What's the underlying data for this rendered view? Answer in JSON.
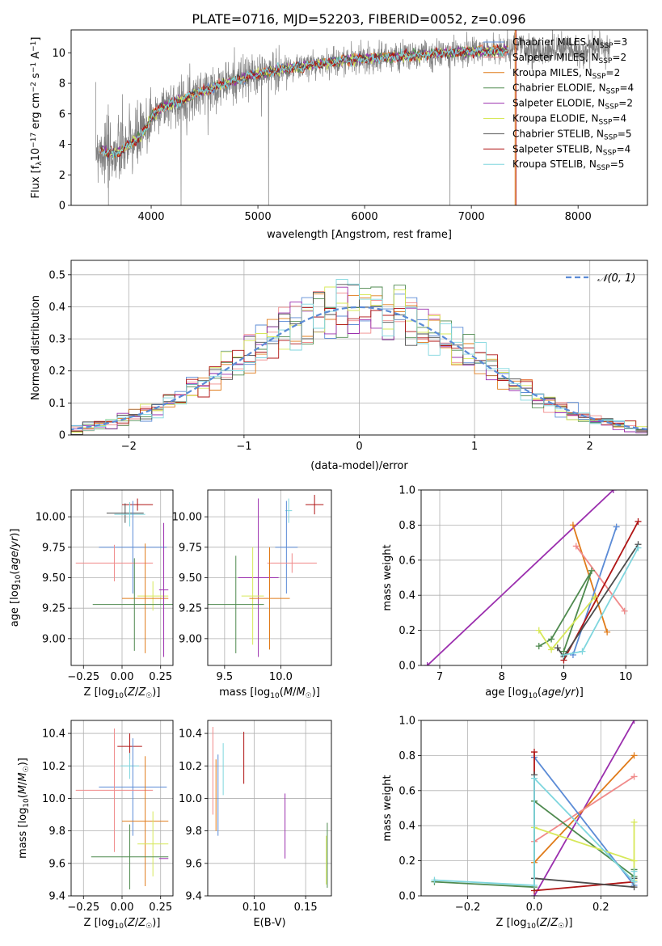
{
  "figure": {
    "title": "PLATE=0716, MJD=52203, FIBERID=0052, z=0.096"
  },
  "colors": {
    "chabrier_miles": "#5b8bd6",
    "salpeter_miles": "#f08a8a",
    "kroupa_miles": "#e07b1a",
    "chabrier_elodie": "#4f8a4f",
    "salpeter_elodie": "#9b2fae",
    "kroupa_elodie": "#d7e85a",
    "chabrier_stelib": "#4d4d4d",
    "salpeter_stelib": "#b01515",
    "kroupa_stelib": "#7fd6de",
    "spectrum": "#808080",
    "normal": "#5b8bd6",
    "grid": "#b0b0b0"
  },
  "chart_data": [
    {
      "id": "spectrum",
      "type": "line",
      "xlabel": "wavelength [Angstrom, rest frame]",
      "ylabel": "Flux [f_λ10^-17 erg cm^-2 s^-1 A^-1]",
      "xlim": [
        3250,
        8650
      ],
      "ylim": [
        0,
        11.5
      ],
      "xticks": [
        4000,
        5000,
        6000,
        7000,
        8000
      ],
      "yticks": [
        0,
        2,
        4,
        6,
        8,
        10
      ],
      "grid": false,
      "legend_position": "right",
      "legend": [
        {
          "key": "chabrier_miles",
          "label": "Chabrier MILES, N",
          "sub": "SSP",
          "tail": "=3"
        },
        {
          "key": "salpeter_miles",
          "label": "Salpeter MILES, N",
          "sub": "SSP",
          "tail": "=2"
        },
        {
          "key": "kroupa_miles",
          "label": "Kroupa MILES, N",
          "sub": "SSP",
          "tail": "=2"
        },
        {
          "key": "chabrier_elodie",
          "label": "Chabrier ELODIE, N",
          "sub": "SSP",
          "tail": "=4"
        },
        {
          "key": "salpeter_elodie",
          "label": "Salpeter ELODIE, N",
          "sub": "SSP",
          "tail": "=2"
        },
        {
          "key": "kroupa_elodie",
          "label": "Kroupa ELODIE, N",
          "sub": "SSP",
          "tail": "=4"
        },
        {
          "key": "chabrier_stelib",
          "label": "Chabrier STELIB, N",
          "sub": "SSP",
          "tail": "=5"
        },
        {
          "key": "salpeter_stelib",
          "label": "Salpeter STELIB, N",
          "sub": "SSP",
          "tail": "=4"
        },
        {
          "key": "kroupa_stelib",
          "label": "Kroupa STELIB, N",
          "sub": "SSP",
          "tail": "=5"
        }
      ],
      "continuum": {
        "x": [
          3480,
          3600,
          3700,
          3800,
          3900,
          3950,
          4000,
          4100,
          4200,
          4300,
          4400,
          4500,
          4600,
          4800,
          5000,
          5200,
          5400,
          5600,
          5800,
          6000,
          6200,
          6400,
          6600,
          6800,
          7000,
          7200,
          7400
        ],
        "y": [
          3.8,
          3.4,
          3.5,
          4.0,
          4.5,
          5.0,
          5.8,
          6.4,
          6.7,
          6.9,
          7.3,
          7.5,
          7.8,
          8.2,
          8.6,
          8.9,
          9.1,
          9.3,
          9.5,
          9.6,
          9.7,
          9.8,
          9.9,
          10.0,
          10.1,
          10.1,
          10.2
        ]
      },
      "spectrum_range": [
        3480,
        8300
      ],
      "model_range": [
        3520,
        7350
      ]
    },
    {
      "id": "residuals",
      "type": "histogram",
      "xlabel": "(data-model)/error",
      "ylabel": "Normed distribution",
      "xlim": [
        -2.5,
        2.5
      ],
      "ylim": [
        0,
        0.545
      ],
      "xticks": [
        -2,
        -1,
        0,
        1,
        2
      ],
      "yticks": [
        0,
        0.1,
        0.2,
        0.3,
        0.4,
        0.5
      ],
      "grid": true,
      "legend_position": "top-right",
      "legend": [
        {
          "key": "normal",
          "label": "𝒩(0, 1)"
        }
      ],
      "bin_width": 0.1
    },
    {
      "id": "age_vs_Z",
      "type": "errorbar",
      "xlabel": "Z [log10(Z/Z☉)]",
      "ylabel": "age  [log10(age/yr)]",
      "xlim": [
        -0.33,
        0.33
      ],
      "ylim": [
        8.78,
        10.22
      ],
      "xticks": [
        -0.25,
        0,
        0.25
      ],
      "xticklabels": [
        "−0.25",
        "0.00",
        "0.25"
      ],
      "yticks": [
        9.0,
        9.25,
        9.5,
        9.75,
        10.0
      ],
      "yticklabels": [
        "9.00",
        "9.25",
        "9.50",
        "9.75",
        "10.00"
      ],
      "grid": true,
      "points": [
        {
          "key": "salpeter_stelib",
          "x": 0.1,
          "xerr": 0.1,
          "y": 10.1,
          "yerr": 0.05
        },
        {
          "key": "chabrier_stelib",
          "x": 0.02,
          "xerr": 0.12,
          "y": 10.03,
          "yerr": 0.08
        },
        {
          "key": "kroupa_stelib",
          "x": 0.05,
          "xerr": 0.1,
          "y": 10.02,
          "yerr": 0.1
        },
        {
          "key": "chabrier_miles",
          "x": 0.07,
          "xerr": 0.22,
          "y": 9.75,
          "yerr": 0.38
        },
        {
          "key": "salpeter_miles",
          "x": -0.05,
          "xerr": 0.25,
          "y": 9.62,
          "yerr": 0.15
        },
        {
          "key": "kroupa_elodie",
          "x": 0.2,
          "xerr": 0.1,
          "y": 9.35,
          "yerr": 0.12
        },
        {
          "key": "kroupa_miles",
          "x": 0.15,
          "xerr": 0.15,
          "y": 9.33,
          "yerr": 0.45
        },
        {
          "key": "chabrier_elodie",
          "x": 0.08,
          "xerr": 0.27,
          "y": 9.28,
          "yerr": 0.38
        },
        {
          "key": "salpeter_elodie",
          "x": 0.27,
          "xerr": 0.03,
          "y": 9.4,
          "yerr": 0.55
        }
      ]
    },
    {
      "id": "age_vs_mass",
      "type": "errorbar",
      "xlabel": "mass [log10(M/M☉)]",
      "ylabel": "",
      "xlim": [
        9.35,
        10.45
      ],
      "ylim": [
        8.78,
        10.22
      ],
      "xticks": [
        9.5,
        10.0
      ],
      "xticklabels": [
        "9.5",
        "10.0"
      ],
      "yticks": [
        9.0,
        9.25,
        9.5,
        9.75,
        10.0
      ],
      "yticklabels": [
        "9.00",
        "9.25",
        "9.50",
        "9.75",
        "10.00"
      ],
      "grid": true,
      "points": [
        {
          "key": "salpeter_stelib",
          "x": 10.3,
          "xerr": 0.08,
          "y": 10.1,
          "yerr": 0.08
        },
        {
          "key": "kroupa_stelib",
          "x": 10.07,
          "xerr": 0.03,
          "y": 10.05,
          "yerr": 0.1
        },
        {
          "key": "chabrier_miles",
          "x": 10.05,
          "xerr": 0.1,
          "y": 9.75,
          "yerr": 0.38
        },
        {
          "key": "salpeter_miles",
          "x": 10.1,
          "xerr": 0.22,
          "y": 9.62,
          "yerr": 0.08
        },
        {
          "key": "salpeter_elodie",
          "x": 9.8,
          "xerr": 0.18,
          "y": 9.5,
          "yerr": 0.65
        },
        {
          "key": "kroupa_elodie",
          "x": 9.75,
          "xerr": 0.1,
          "y": 9.35,
          "yerr": 0.4
        },
        {
          "key": "kroupa_miles",
          "x": 9.9,
          "xerr": 0.18,
          "y": 9.33,
          "yerr": 0.42
        },
        {
          "key": "chabrier_elodie",
          "x": 9.6,
          "xerr": 0.25,
          "y": 9.28,
          "yerr": 0.4
        }
      ]
    },
    {
      "id": "weight_vs_age",
      "type": "line",
      "xlabel": "age  [log10(age/yr)]",
      "ylabel": "mass weight",
      "xlim": [
        6.7,
        10.35
      ],
      "ylim": [
        0,
        1.0
      ],
      "xticks": [
        7,
        8,
        9,
        10
      ],
      "yticks": [
        0,
        0.2,
        0.4,
        0.6,
        0.8,
        1.0
      ],
      "yticklabels": [
        "0.0",
        "0.2",
        "0.4",
        "0.6",
        "0.8",
        "1.0"
      ],
      "grid": true,
      "series": [
        {
          "key": "salpeter_elodie",
          "x": [
            6.8,
            9.8
          ],
          "y": [
            0.0,
            1.0
          ]
        },
        {
          "key": "kroupa_miles",
          "x": [
            9.15,
            9.7
          ],
          "y": [
            0.8,
            0.19
          ]
        },
        {
          "key": "chabrier_miles",
          "x": [
            9.15,
            9.85
          ],
          "y": [
            0.06,
            0.79
          ]
        },
        {
          "key": "salpeter_miles",
          "x": [
            9.2,
            9.98
          ],
          "y": [
            0.68,
            0.31
          ]
        },
        {
          "key": "salpeter_stelib",
          "x": [
            9.0,
            10.2
          ],
          "y": [
            0.03,
            0.82
          ]
        },
        {
          "key": "chabrier_stelib",
          "x": [
            8.9,
            9.0,
            10.2
          ],
          "y": [
            0.1,
            0.05,
            0.69
          ]
        },
        {
          "key": "kroupa_stelib",
          "x": [
            9.0,
            9.3,
            10.2
          ],
          "y": [
            0.06,
            0.08,
            0.67
          ]
        },
        {
          "key": "chabrier_elodie",
          "x": [
            8.6,
            8.8,
            9.45,
            9.0
          ],
          "y": [
            0.11,
            0.15,
            0.54,
            0.08
          ]
        },
        {
          "key": "kroupa_elodie",
          "x": [
            8.6,
            8.8,
            9.5
          ],
          "y": [
            0.2,
            0.09,
            0.39
          ]
        }
      ]
    },
    {
      "id": "mass_vs_Z",
      "type": "errorbar",
      "xlabel": "Z [log10(Z/Z☉)]",
      "ylabel": "mass [log10(M/M☉)]",
      "xlim": [
        -0.33,
        0.33
      ],
      "ylim": [
        9.4,
        10.48
      ],
      "xticks": [
        -0.25,
        0,
        0.25
      ],
      "xticklabels": [
        "−0.25",
        "0.00",
        "0.25"
      ],
      "yticks": [
        9.4,
        9.6,
        9.8,
        10.0,
        10.2,
        10.4
      ],
      "yticklabels": [
        "9.4",
        "9.6",
        "9.8",
        "10.0",
        "10.2",
        "10.4"
      ],
      "grid": true,
      "points": [
        {
          "key": "salpeter_stelib",
          "x": 0.05,
          "xerr": 0.08,
          "y": 10.32,
          "yerr": 0.08
        },
        {
          "key": "kroupa_stelib",
          "x": 0.05,
          "xerr": 0.06,
          "y": 10.2,
          "yerr": 0.08
        },
        {
          "key": "chabrier_miles",
          "x": 0.07,
          "xerr": 0.22,
          "y": 10.07,
          "yerr": 0.3
        },
        {
          "key": "salpeter_miles",
          "x": -0.05,
          "xerr": 0.25,
          "y": 10.05,
          "yerr": 0.38
        },
        {
          "key": "kroupa_miles",
          "x": 0.15,
          "xerr": 0.15,
          "y": 9.86,
          "yerr": 0.4
        },
        {
          "key": "kroupa_elodie",
          "x": 0.2,
          "xerr": 0.1,
          "y": 9.72,
          "yerr": 0.2
        },
        {
          "key": "chabrier_elodie",
          "x": 0.05,
          "xerr": 0.25,
          "y": 9.64,
          "yerr": 0.2
        },
        {
          "key": "salpeter_elodie",
          "x": 0.27,
          "xerr": 0.03,
          "y": 9.63,
          "yerr": 0.0
        }
      ]
    },
    {
      "id": "mass_vs_ebv",
      "type": "errorbar",
      "xlabel": "E(B-V)",
      "ylabel": "",
      "xlim": [
        0.055,
        0.175
      ],
      "ylim": [
        9.4,
        10.48
      ],
      "xticks": [
        0.1,
        0.15
      ],
      "xticklabels": [
        "0.10",
        "0.15"
      ],
      "yticks": [
        9.4,
        9.6,
        9.8,
        10.0,
        10.2,
        10.4
      ],
      "yticklabels": [
        "9.4",
        "9.6",
        "9.8",
        "10.0",
        "10.2",
        "10.4"
      ],
      "grid": true,
      "points": [
        {
          "key": "salpeter_miles",
          "x": 0.06,
          "xerr": 0,
          "y": 10.17,
          "yerr": 0.27
        },
        {
          "key": "kroupa_miles",
          "x": 0.063,
          "xerr": 0,
          "y": 10.02,
          "yerr": 0.22
        },
        {
          "key": "chabrier_miles",
          "x": 0.065,
          "xerr": 0,
          "y": 10.02,
          "yerr": 0.25
        },
        {
          "key": "kroupa_stelib",
          "x": 0.07,
          "xerr": 0,
          "y": 10.18,
          "yerr": 0.16
        },
        {
          "key": "salpeter_stelib",
          "x": 0.09,
          "xerr": 0,
          "y": 10.25,
          "yerr": 0.16
        },
        {
          "key": "salpeter_elodie",
          "x": 0.13,
          "xerr": 0,
          "y": 9.83,
          "yerr": 0.2
        },
        {
          "key": "kroupa_elodie",
          "x": 0.17,
          "xerr": 0,
          "y": 9.62,
          "yerr": 0.15
        },
        {
          "key": "chabrier_elodie",
          "x": 0.171,
          "xerr": 0,
          "y": 9.65,
          "yerr": 0.2
        }
      ]
    },
    {
      "id": "weight_vs_Z",
      "type": "line",
      "xlabel": "Z [log10(Z/Z☉)]",
      "ylabel": "mass weight",
      "xlim": [
        -0.34,
        0.34
      ],
      "ylim": [
        0,
        1.0
      ],
      "xticks": [
        -0.2,
        0,
        0.2
      ],
      "xticklabels": [
        "−0.2",
        "0.0",
        "0.2"
      ],
      "yticks": [
        0,
        0.2,
        0.4,
        0.6,
        0.8,
        1.0
      ],
      "yticklabels": [
        "0.0",
        "0.2",
        "0.4",
        "0.6",
        "0.8",
        "1.0"
      ],
      "grid": true,
      "series": [
        {
          "key": "salpeter_elodie",
          "x": [
            0.0,
            0.3
          ],
          "y": [
            0.0,
            1.0
          ]
        },
        {
          "key": "kroupa_miles",
          "x": [
            0.0,
            0.3
          ],
          "y": [
            0.19,
            0.8
          ]
        },
        {
          "key": "salpeter_miles",
          "x": [
            0.0,
            0.3
          ],
          "y": [
            0.31,
            0.68
          ]
        },
        {
          "key": "chabrier_miles",
          "x": [
            0.0,
            0.3
          ],
          "y": [
            0.79,
            0.06
          ]
        },
        {
          "key": "salpeter_stelib",
          "x": [
            0.0,
            0.0,
            0.3
          ],
          "y": [
            0.82,
            0.03,
            0.08
          ]
        },
        {
          "key": "chabrier_stelib",
          "x": [
            0.0,
            0.0,
            0.3,
            0.3
          ],
          "y": [
            0.69,
            0.1,
            0.05,
            0.1
          ]
        },
        {
          "key": "chabrier_elodie",
          "x": [
            -0.3,
            0.0,
            0.0,
            0.3,
            0.3
          ],
          "y": [
            0.08,
            0.05,
            0.54,
            0.11,
            0.15
          ]
        },
        {
          "key": "kroupa_elodie",
          "x": [
            0.0,
            0.3,
            0.3,
            0.3
          ],
          "y": [
            0.39,
            0.2,
            0.09,
            0.42
          ]
        },
        {
          "key": "kroupa_stelib",
          "x": [
            -0.3,
            0.0,
            0.0,
            0.3,
            0.3
          ],
          "y": [
            0.09,
            0.06,
            0.67,
            0.08,
            0.14
          ]
        }
      ]
    }
  ]
}
